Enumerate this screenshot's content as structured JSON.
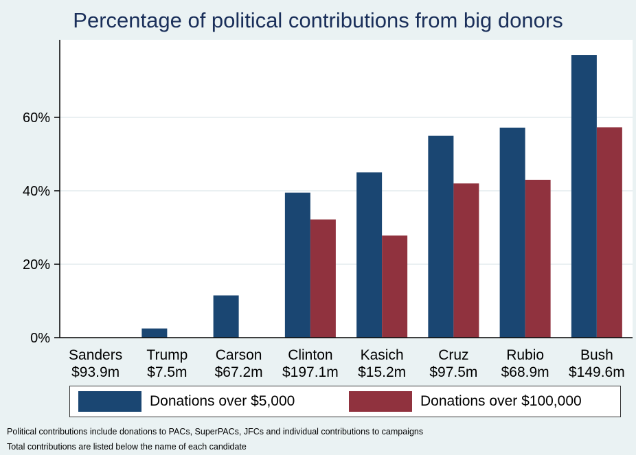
{
  "chart_data": {
    "type": "bar",
    "title": "Percentage of political contributions from big donors",
    "categories": [
      "Sanders",
      "Trump",
      "Carson",
      "Clinton",
      "Kasich",
      "Cruz",
      "Rubio",
      "Bush"
    ],
    "category_totals": [
      "$93.9m",
      "$7.5m",
      "$67.2m",
      "$197.1m",
      "$15.2m",
      "$97.5m",
      "$68.9m",
      "$149.6m"
    ],
    "series": [
      {
        "name": "Donations over $5,000",
        "color": "#1a4672",
        "values": [
          0,
          2.5,
          11.5,
          39.5,
          45,
          55,
          57.2,
          77
        ]
      },
      {
        "name": "Donations over $100,000",
        "color": "#90323e",
        "values": [
          0,
          0,
          0,
          32.2,
          27.8,
          42,
          43,
          57.3
        ]
      }
    ],
    "y_ticks": [
      {
        "value": 0,
        "label": "0%"
      },
      {
        "value": 20,
        "label": "20%"
      },
      {
        "value": 40,
        "label": "40%"
      },
      {
        "value": 60,
        "label": "60%"
      }
    ],
    "ylim": [
      0,
      81
    ],
    "grid": true,
    "legend_position": "bottom"
  },
  "notes": [
    "Political contributions include donations to PACs, SuperPACs, JFCs and individual contributions to campaigns",
    "Total contributions are listed below the name of each candidate"
  ]
}
